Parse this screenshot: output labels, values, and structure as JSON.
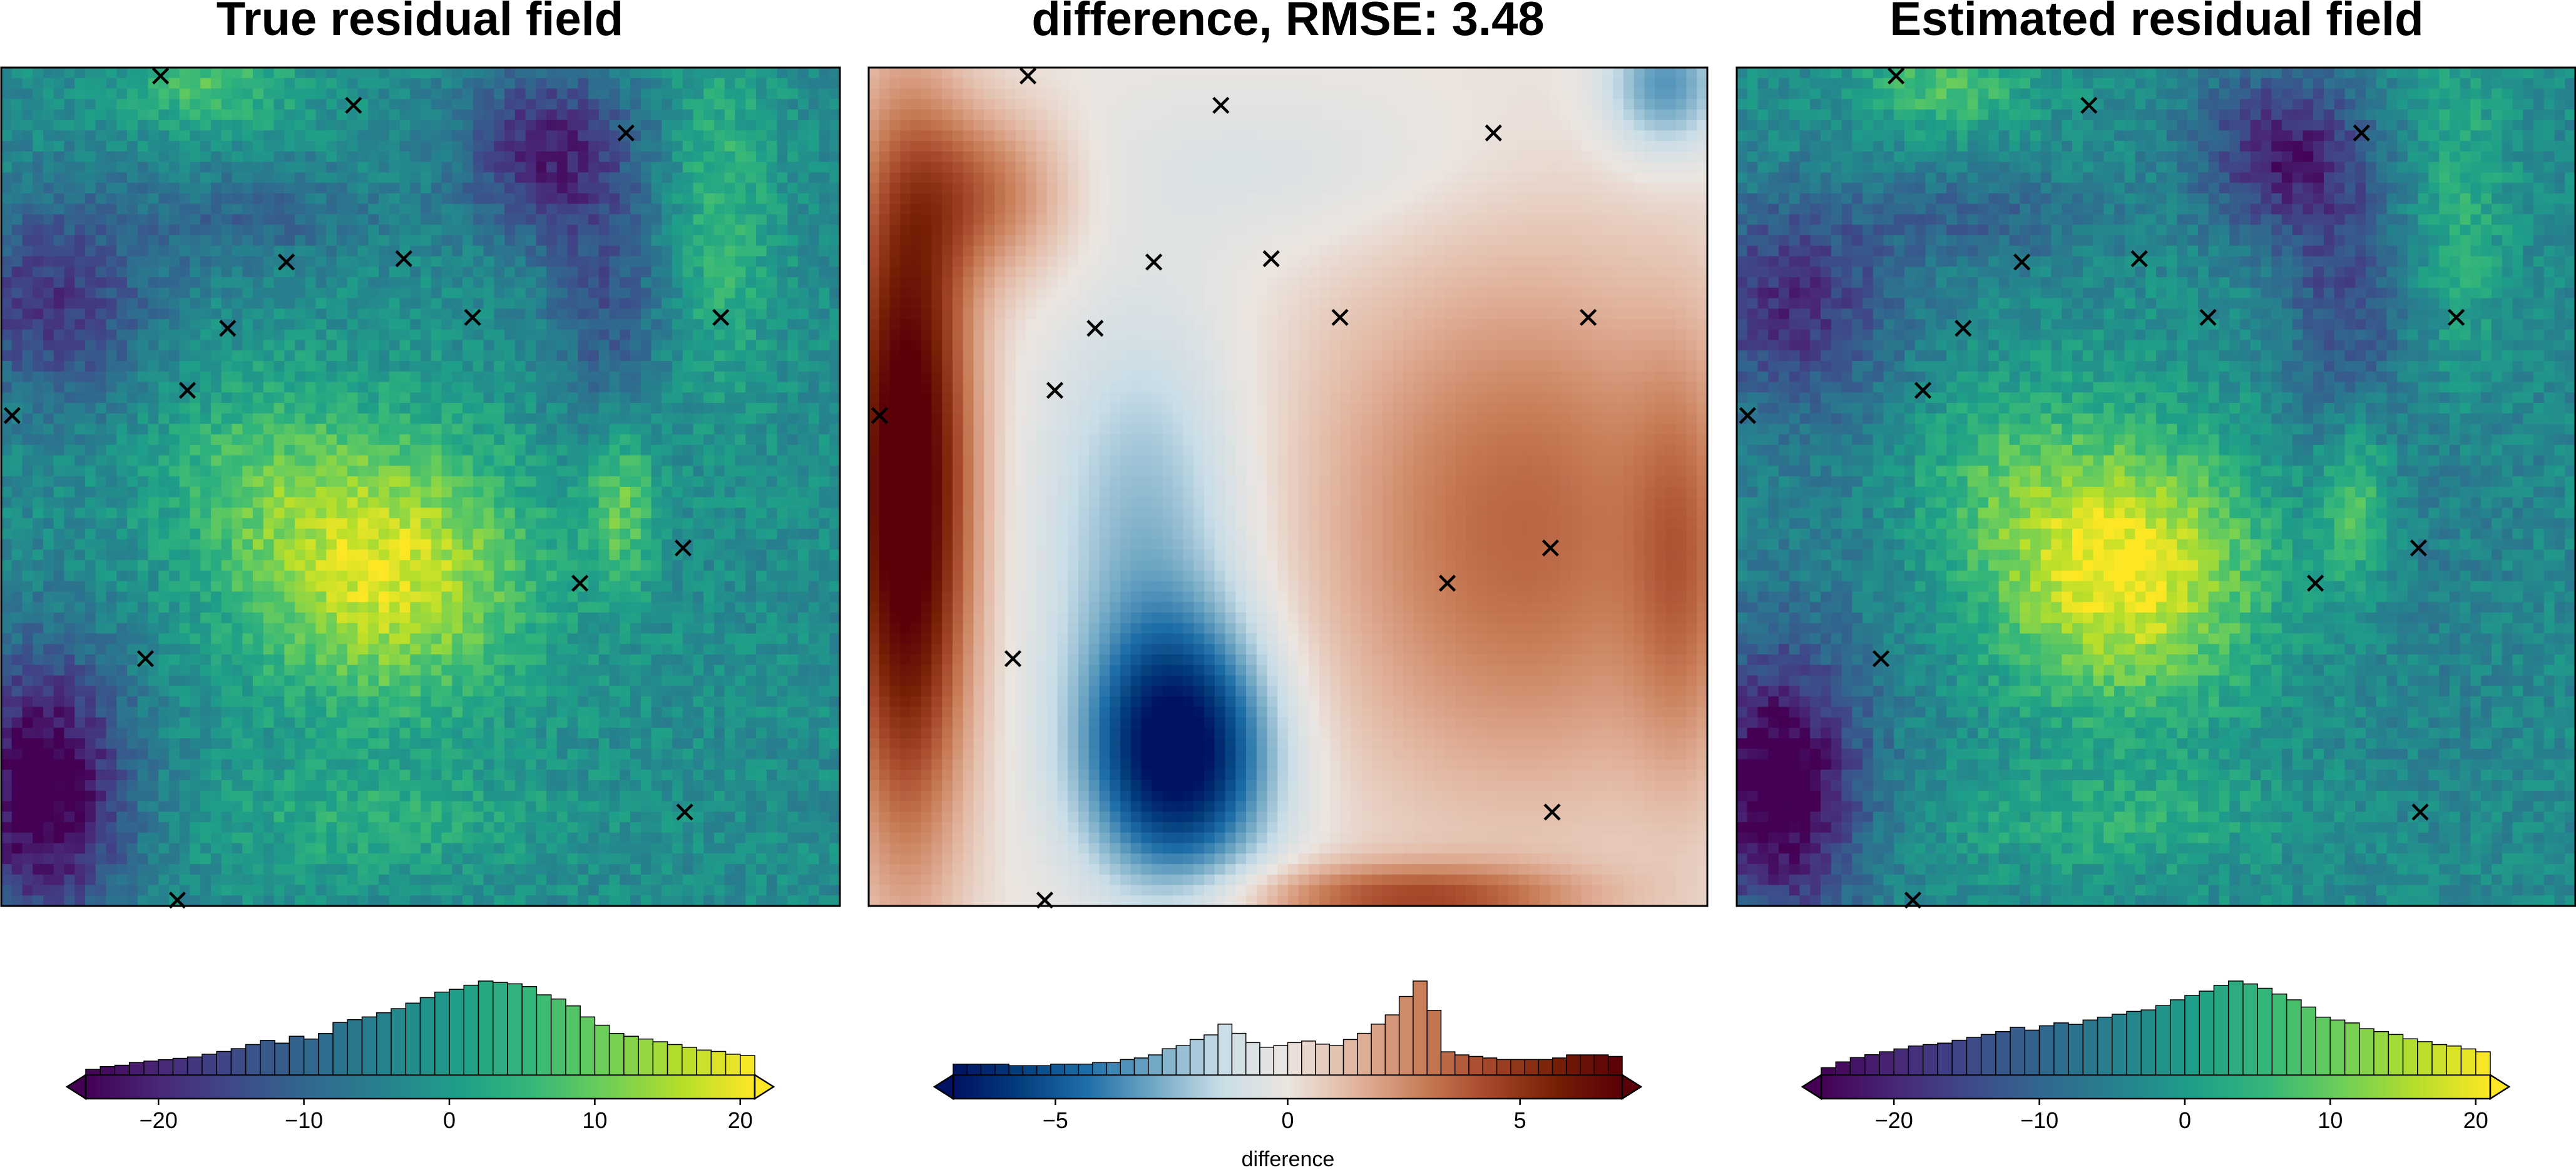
{
  "panels": [
    {
      "title": "True residual field",
      "colormap": "viridis",
      "range": [
        -25,
        21
      ],
      "ticks": [
        -20,
        -10,
        0,
        10,
        20
      ],
      "cbar_label": ""
    },
    {
      "title": "difference, RMSE: 3.48",
      "colormap": "vik",
      "range": [
        -7.2,
        7.2
      ],
      "ticks": [
        -5,
        0,
        5
      ],
      "cbar_label": "difference"
    },
    {
      "title": "Estimated residual field",
      "colormap": "viridis",
      "range": [
        -25,
        21
      ],
      "ticks": [
        -20,
        -10,
        0,
        10,
        20
      ],
      "cbar_label": ""
    }
  ],
  "colormaps": {
    "viridis": [
      "#440154",
      "#482878",
      "#3e4a89",
      "#31688e",
      "#26828e",
      "#1f9e89",
      "#35b779",
      "#6ece58",
      "#b5de2b",
      "#fde725"
    ],
    "vik": [
      "#001261",
      "#033e7d",
      "#1e6fa8",
      "#71a8c4",
      "#c9dde7",
      "#ebe5e0",
      "#e2b59f",
      "#c97e59",
      "#a5472a",
      "#762006",
      "#590008"
    ]
  },
  "markers": {
    "symbol": "x",
    "points": [
      [
        0.19,
        0.01
      ],
      [
        0.42,
        0.045
      ],
      [
        0.745,
        0.078
      ],
      [
        0.34,
        0.232
      ],
      [
        0.48,
        0.228
      ],
      [
        0.27,
        0.311
      ],
      [
        0.562,
        0.298
      ],
      [
        0.858,
        0.298
      ],
      [
        0.222,
        0.385
      ],
      [
        0.013,
        0.415
      ],
      [
        0.813,
        0.573
      ],
      [
        0.69,
        0.615
      ],
      [
        0.172,
        0.705
      ],
      [
        0.815,
        0.888
      ],
      [
        0.21,
        0.993
      ]
    ]
  },
  "chart_data": [
    {
      "type": "heatmap",
      "title": "True residual field",
      "colorbar": {
        "range": [
          -25,
          21
        ],
        "ticks": [
          -20,
          -10,
          0,
          10,
          20
        ]
      },
      "histogram": {
        "bins": [
          -24.5,
          -23.5,
          -22.5,
          -21.5,
          -20.5,
          -19.5,
          -18.5,
          -17.5,
          -16.5,
          -15.5,
          -14.5,
          -13.5,
          -12.5,
          -11.5,
          -10.5,
          -9.5,
          -8.5,
          -7.5,
          -6.5,
          -5.5,
          -4.5,
          -3.5,
          -2.5,
          -1.5,
          -0.5,
          0.5,
          1.5,
          2.5,
          3.5,
          4.5,
          5.5,
          6.5,
          7.5,
          8.5,
          9.5,
          10.5,
          11.5,
          12.5,
          13.5,
          14.5,
          15.5,
          16.5,
          17.5,
          18.5,
          19.5,
          20.5
        ],
        "counts": [
          4,
          6,
          7,
          9,
          10,
          11,
          12,
          13,
          15,
          17,
          19,
          22,
          25,
          23,
          28,
          26,
          30,
          38,
          40,
          42,
          45,
          48,
          52,
          56,
          60,
          62,
          65,
          68,
          67,
          66,
          64,
          58,
          55,
          50,
          42,
          36,
          30,
          28,
          26,
          24,
          22,
          20,
          18,
          17,
          15,
          14
        ]
      },
      "markers": "x"
    },
    {
      "type": "heatmap",
      "title": "difference, RMSE: 3.48",
      "colorbar": {
        "range": [
          -7.2,
          7.2
        ],
        "ticks": [
          -5,
          0,
          5
        ],
        "label": "difference"
      },
      "histogram": {
        "bins": [
          -7.05,
          -6.75,
          -6.45,
          -6.15,
          -5.85,
          -5.55,
          -5.25,
          -4.95,
          -4.65,
          -4.35,
          -4.05,
          -3.75,
          -3.45,
          -3.15,
          -2.85,
          -2.55,
          -2.25,
          -1.95,
          -1.65,
          -1.35,
          -1.05,
          -0.75,
          -0.45,
          -0.15,
          0.15,
          0.45,
          0.75,
          1.05,
          1.35,
          1.65,
          1.95,
          2.25,
          2.55,
          2.85,
          3.15,
          3.45,
          3.75,
          4.05,
          4.35,
          4.65,
          4.95,
          5.25,
          5.55,
          5.85,
          6.15,
          6.45,
          6.75,
          7.05
        ],
        "counts": [
          7,
          7,
          7,
          7,
          6,
          6,
          6,
          7,
          7,
          7,
          8,
          8,
          10,
          11,
          13,
          17,
          19,
          23,
          26,
          33,
          27,
          21,
          18,
          19,
          21,
          22,
          20,
          19,
          23,
          27,
          33,
          39,
          51,
          61,
          42,
          15,
          13,
          12,
          11,
          10,
          10,
          10,
          10,
          11,
          13,
          13,
          13,
          12
        ]
      },
      "markers": "x"
    },
    {
      "type": "heatmap",
      "title": "Estimated residual field",
      "colorbar": {
        "range": [
          -25,
          21
        ],
        "ticks": [
          -20,
          -10,
          0,
          10,
          20
        ]
      },
      "histogram": {
        "bins": [
          -24.5,
          -23.5,
          -22.5,
          -21.5,
          -20.5,
          -19.5,
          -18.5,
          -17.5,
          -16.5,
          -15.5,
          -14.5,
          -13.5,
          -12.5,
          -11.5,
          -10.5,
          -9.5,
          -8.5,
          -7.5,
          -6.5,
          -5.5,
          -4.5,
          -3.5,
          -2.5,
          -1.5,
          -0.5,
          0.5,
          1.5,
          2.5,
          3.5,
          4.5,
          5.5,
          6.5,
          7.5,
          8.5,
          9.5,
          10.5,
          11.5,
          12.5,
          13.5,
          14.5,
          15.5,
          16.5,
          17.5,
          18.5,
          19.5,
          20.5
        ],
        "counts": [
          5,
          9,
          12,
          14,
          16,
          18,
          20,
          21,
          22,
          24,
          26,
          28,
          30,
          33,
          31,
          34,
          36,
          35,
          38,
          40,
          42,
          44,
          45,
          48,
          52,
          55,
          58,
          62,
          65,
          63,
          60,
          56,
          52,
          47,
          40,
          38,
          36,
          32,
          30,
          28,
          25,
          23,
          21,
          20,
          18,
          16
        ]
      },
      "markers": "x"
    }
  ]
}
